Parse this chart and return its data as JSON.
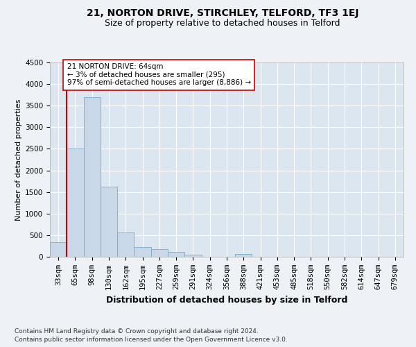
{
  "title_line1": "21, NORTON DRIVE, STIRCHLEY, TELFORD, TF3 1EJ",
  "title_line2": "Size of property relative to detached houses in Telford",
  "xlabel": "Distribution of detached houses by size in Telford",
  "ylabel": "Number of detached properties",
  "categories": [
    "33sqm",
    "65sqm",
    "98sqm",
    "130sqm",
    "162sqm",
    "195sqm",
    "227sqm",
    "259sqm",
    "291sqm",
    "324sqm",
    "356sqm",
    "388sqm",
    "421sqm",
    "453sqm",
    "485sqm",
    "518sqm",
    "550sqm",
    "582sqm",
    "614sqm",
    "647sqm",
    "679sqm"
  ],
  "values": [
    330,
    2500,
    3700,
    1620,
    560,
    230,
    170,
    110,
    55,
    0,
    0,
    60,
    0,
    0,
    0,
    0,
    0,
    0,
    0,
    0,
    0
  ],
  "bar_color": "#c8d8e8",
  "bar_edge_color": "#7aaac8",
  "highlight_line_color": "#cc0000",
  "annotation_text": "21 NORTON DRIVE: 64sqm\n← 3% of detached houses are smaller (295)\n97% of semi-detached houses are larger (8,886) →",
  "annotation_box_facecolor": "#ffffff",
  "annotation_box_edgecolor": "#cc0000",
  "ylim": [
    0,
    4500
  ],
  "yticks": [
    0,
    500,
    1000,
    1500,
    2000,
    2500,
    3000,
    3500,
    4000,
    4500
  ],
  "footer_line1": "Contains HM Land Registry data © Crown copyright and database right 2024.",
  "footer_line2": "Contains public sector information licensed under the Open Government Licence v3.0.",
  "background_color": "#eef2f7",
  "plot_bg_color": "#dce6f0",
  "grid_color": "#ffffff",
  "title1_fontsize": 10,
  "title2_fontsize": 9,
  "ylabel_fontsize": 8,
  "xlabel_fontsize": 9,
  "tick_fontsize": 7.5,
  "annotation_fontsize": 7.5,
  "footer_fontsize": 6.5
}
